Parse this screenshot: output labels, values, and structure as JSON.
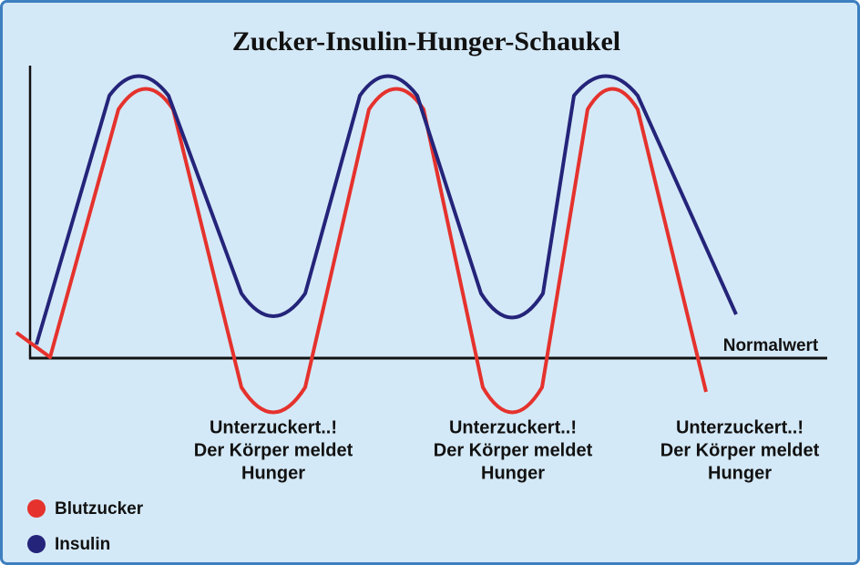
{
  "title": "Zucker-Insulin-Hunger-Schaukel",
  "baseline_label": "Normalwert",
  "annotations": [
    [
      "Unterzuckert..!",
      "Der Körper meldet",
      "Hunger"
    ],
    [
      "Unterzuckert..!",
      "Der Körper meldet",
      "Hunger"
    ],
    [
      "Unterzuckert..!",
      "Der Körper meldet",
      "Hunger"
    ]
  ],
  "legend": [
    {
      "label": "Blutzucker",
      "color": "#e5322d"
    },
    {
      "label": "Insulin",
      "color": "#24247a"
    }
  ]
}
